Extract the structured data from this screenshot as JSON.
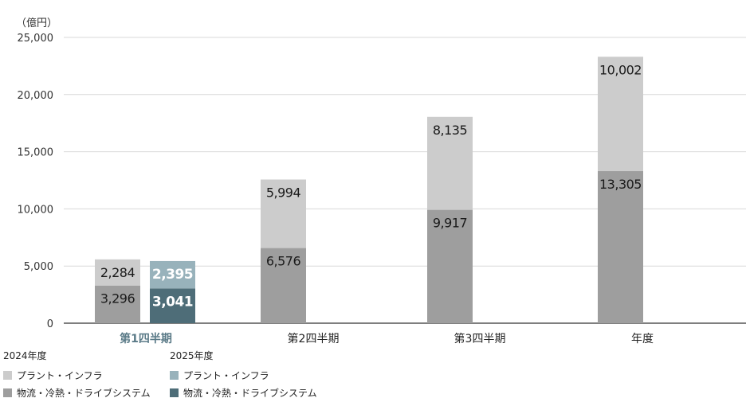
{
  "chart_data": {
    "type": "bar",
    "stacked": true,
    "unit_label": "（億円）",
    "categories": [
      "第1四半期",
      "第2四半期",
      "第3四半期",
      "年度"
    ],
    "highlight_category_index": 0,
    "highlight_color": "#5a7a87",
    "ylim": [
      0,
      25000
    ],
    "yticks": [
      0,
      5000,
      10000,
      15000,
      20000,
      25000
    ],
    "ytick_labels": [
      "0",
      "5,000",
      "10,000",
      "15,000",
      "20,000",
      "25,000"
    ],
    "grid": true,
    "groups": [
      {
        "name": "2024年度",
        "series": [
          {
            "name": "物流・冷熱・ドライブシステム",
            "color": "#9e9e9e",
            "values": [
              3296,
              6576,
              9917,
              13305
            ],
            "labels": [
              "3,296",
              "6,576",
              "9,917",
              "13,305"
            ]
          },
          {
            "name": "プラント・インフラ",
            "color": "#cccccc",
            "values": [
              2284,
              5994,
              8135,
              10002
            ],
            "labels": [
              "2,284",
              "5,994",
              "8,135",
              "10,002"
            ]
          }
        ]
      },
      {
        "name": "2025年度",
        "series": [
          {
            "name": "物流・冷熱・ドライブシステム",
            "color": "#4e6d78",
            "values": [
              3041,
              null,
              null,
              null
            ],
            "labels": [
              "3,041",
              "",
              "",
              ""
            ]
          },
          {
            "name": "プラント・インフラ",
            "color": "#98b2bb",
            "values": [
              2395,
              null,
              null,
              null
            ],
            "labels": [
              "2,395",
              "",
              "",
              ""
            ]
          }
        ]
      }
    ]
  },
  "legend": {
    "groups": [
      {
        "title": "2024年度",
        "items": [
          {
            "label": "プラント・インフラ",
            "color": "#cccccc"
          },
          {
            "label": "物流・冷熱・ドライブシステム",
            "color": "#9e9e9e"
          }
        ]
      },
      {
        "title": "2025年度",
        "items": [
          {
            "label": "プラント・インフラ",
            "color": "#98b2bb"
          },
          {
            "label": "物流・冷熱・ドライブシステム",
            "color": "#4e6d78"
          }
        ]
      }
    ]
  }
}
